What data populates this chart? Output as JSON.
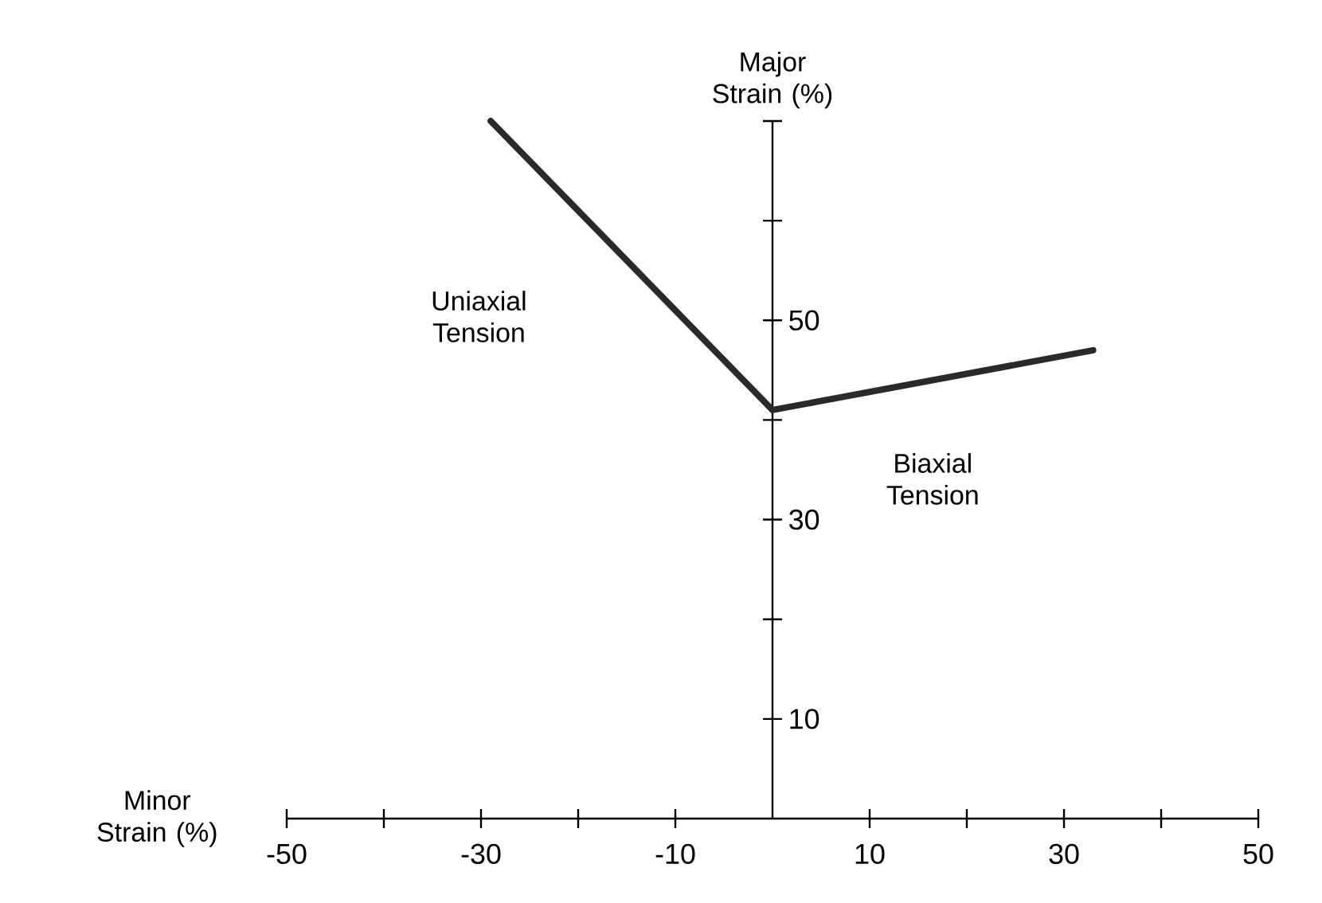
{
  "chart_data": {
    "type": "line",
    "xlabel": "Minor Strain (%)",
    "ylabel": "Major Strain (%)",
    "x": [
      -29,
      0,
      33
    ],
    "series": [
      {
        "color": "#2a2a2a",
        "values": [
          70,
          41,
          47
        ]
      }
    ],
    "xlim": [
      -50,
      50
    ],
    "ylim": [
      0,
      70
    ],
    "xticks": [
      -50,
      {
        "value": -40,
        "label": null
      },
      -30,
      {
        "value": -20,
        "label": null
      },
      -10,
      {
        "value": 0,
        "label": null
      },
      10,
      {
        "value": 20,
        "label": null
      },
      30,
      {
        "value": 40,
        "label": null
      },
      50
    ],
    "yticks": [
      10,
      {
        "value": 20,
        "label": null
      },
      30,
      {
        "value": 40,
        "label": null
      },
      50,
      {
        "value": 60,
        "label": null
      },
      {
        "value": 70,
        "label": null
      }
    ],
    "annotations": [
      "Uniaxial Tension",
      "Biaxial Tension"
    ],
    "grid": false,
    "line_style": "solid"
  }
}
